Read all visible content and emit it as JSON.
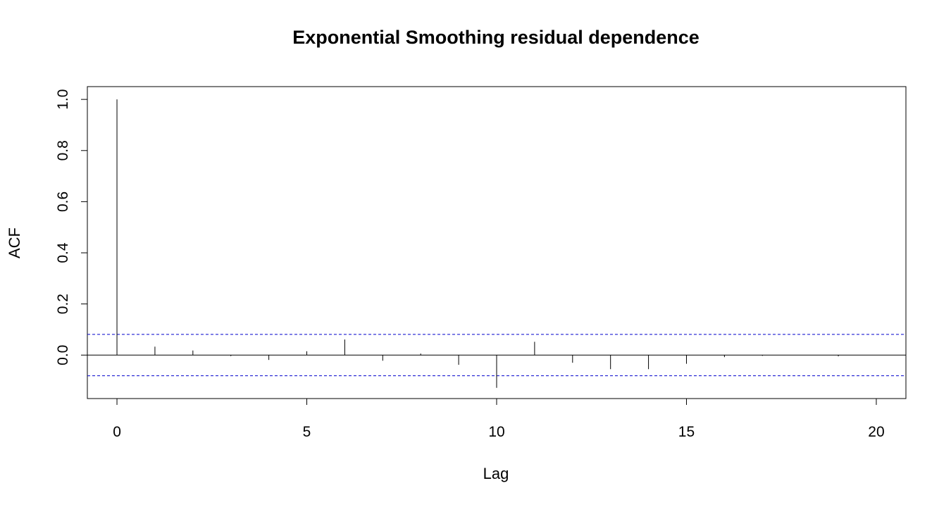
{
  "chart_data": {
    "type": "bar",
    "title": "Exponential Smoothing residual dependence",
    "xlabel": "Lag",
    "ylabel": "ACF",
    "xlim": [
      -0.78,
      20.78
    ],
    "ylim": [
      -0.17,
      1.05
    ],
    "x_ticks": [
      "0",
      "5",
      "10",
      "15",
      "20"
    ],
    "y_ticks": [
      "0.0",
      "0.2",
      "0.4",
      "0.6",
      "0.8",
      "1.0"
    ],
    "lags": [
      0,
      1,
      2,
      3,
      4,
      5,
      6,
      7,
      8,
      9,
      10,
      11,
      12,
      13,
      14,
      15,
      16,
      17,
      18,
      19,
      20
    ],
    "acf": [
      1.0,
      0.033,
      0.018,
      -0.004,
      -0.019,
      0.015,
      0.061,
      -0.022,
      0.006,
      -0.038,
      -0.128,
      0.052,
      -0.03,
      -0.055,
      -0.055,
      -0.034,
      -0.008,
      -0.003,
      0.0,
      -0.005,
      0.0
    ],
    "confidence_bound": 0.081,
    "confidence_color": "#0000cc",
    "zero_line": true,
    "grid": false,
    "legend": "none"
  }
}
